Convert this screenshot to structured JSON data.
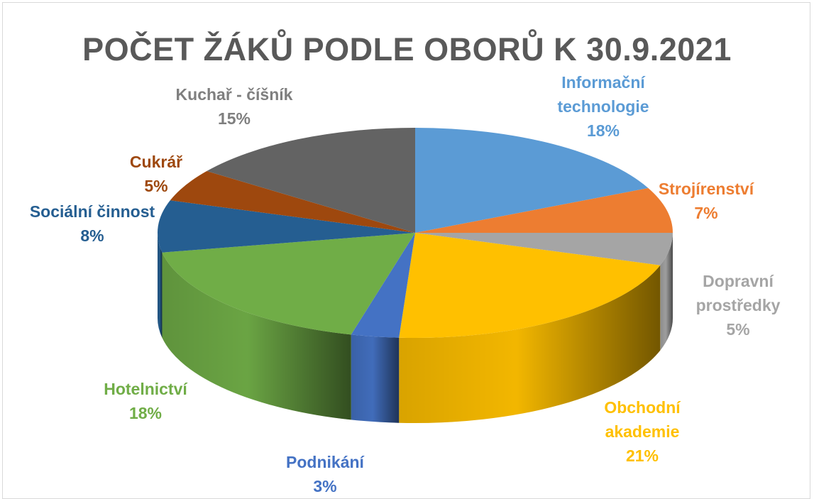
{
  "chart_data": {
    "type": "pie",
    "title": "POČET ŽÁKŮ PODLE OBORŮ K 30.9.2021",
    "categories": [
      "Informační technologie",
      "Strojírenství",
      "Dopravní prostředky",
      "Obchodní akademie",
      "Podnikání",
      "Hotelnictví",
      "Sociální činnost",
      "Cukrář",
      "Kuchař - číšník"
    ],
    "values": [
      18,
      7,
      5,
      21,
      3,
      18,
      8,
      5,
      15
    ],
    "value_labels": [
      "18%",
      "7%",
      "5%",
      "21%",
      "3%",
      "18%",
      "8%",
      "5%",
      "15%"
    ],
    "colors": [
      "#5b9bd5",
      "#ed7d31",
      "#a5a5a5",
      "#ffc000",
      "#4472c4",
      "#70ad47",
      "#255e91",
      "#9e480e",
      "#636363"
    ],
    "three_d": true
  }
}
